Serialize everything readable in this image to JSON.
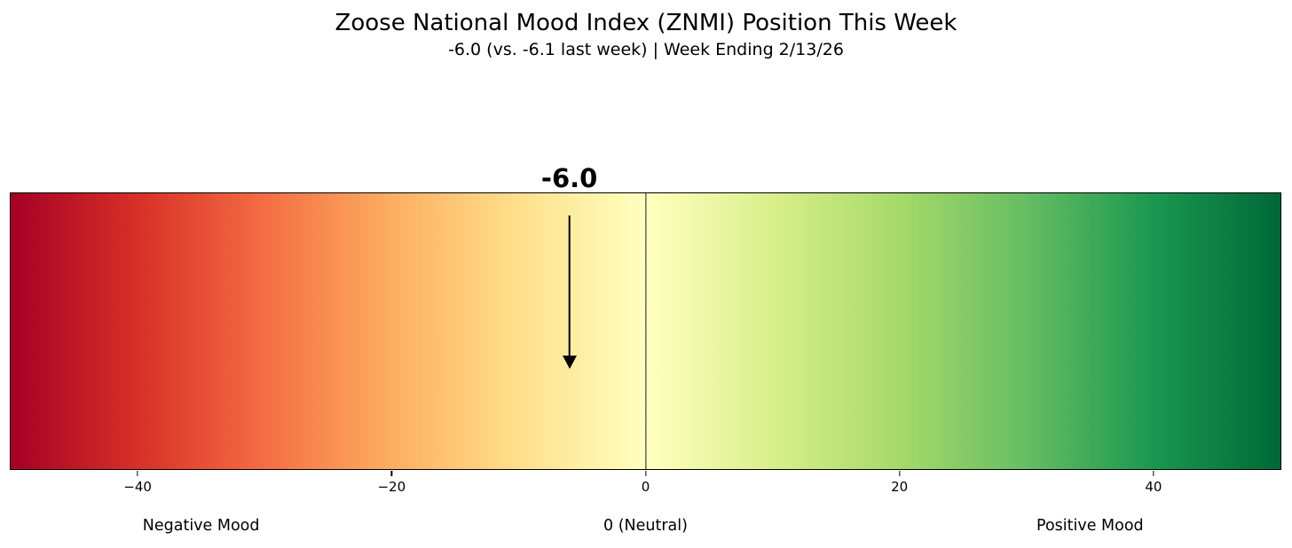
{
  "chart_data": {
    "type": "gauge-colorbar",
    "title": "Zoose National Mood Index (ZNMI) Position This Week",
    "subtitle": "-6.0 (vs. -6.1 last week) | Week Ending 2/13/26",
    "value": -6.0,
    "value_label": "-6.0",
    "previous_value": -6.1,
    "week_ending": "2/13/26",
    "xlabel": "",
    "ylabel": "",
    "xlim": [
      -50,
      50
    ],
    "zero_line_value": 0,
    "ticks": [
      {
        "value": -40,
        "label": "−40"
      },
      {
        "value": -20,
        "label": "−20"
      },
      {
        "value": 0,
        "label": "0"
      },
      {
        "value": 20,
        "label": "20"
      },
      {
        "value": 40,
        "label": "40"
      }
    ],
    "zone_labels": [
      {
        "value": -35,
        "label": "Negative Mood"
      },
      {
        "value": 0,
        "label": "0 (Neutral)"
      },
      {
        "value": 35,
        "label": "Positive Mood"
      }
    ],
    "colormap": "RdYlGn",
    "gradient_stops": [
      "#a50026",
      "#d73027",
      "#f46d43",
      "#fdae61",
      "#fee08b",
      "#ffffbf",
      "#d9ef8b",
      "#a6d96a",
      "#66bd63",
      "#1a9850",
      "#006837"
    ],
    "marker_color": "#000000",
    "zero_line_color": "#1a1a1a",
    "grid": false,
    "legend": false
  }
}
